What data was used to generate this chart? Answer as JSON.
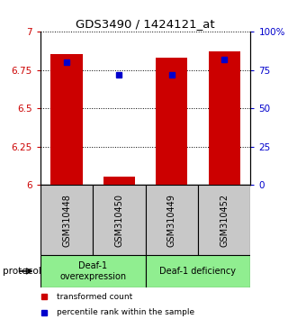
{
  "title": "GDS3490 / 1424121_at",
  "samples": [
    "GSM310448",
    "GSM310450",
    "GSM310449",
    "GSM310452"
  ],
  "bar_values": [
    6.855,
    6.055,
    6.832,
    6.875
  ],
  "percentile_values": [
    80.0,
    72.0,
    72.0,
    82.0
  ],
  "bar_color": "#cc0000",
  "percentile_color": "#0000cc",
  "ylim_left": [
    6.0,
    7.0
  ],
  "ylim_right": [
    0,
    100
  ],
  "yticks_left": [
    6.0,
    6.25,
    6.5,
    6.75,
    7.0
  ],
  "yticks_right": [
    0,
    25,
    50,
    75,
    100
  ],
  "ytick_labels_left": [
    "6",
    "6.25",
    "6.5",
    "6.75",
    "7"
  ],
  "ytick_labels_right": [
    "0",
    "25",
    "50",
    "75",
    "100%"
  ],
  "groups": [
    {
      "label": "Deaf-1\noverexpression",
      "color": "#90ee90"
    },
    {
      "label": "Deaf-1 deficiency",
      "color": "#90ee90"
    }
  ],
  "protocol_label": "protocol",
  "legend_items": [
    {
      "label": "transformed count",
      "color": "#cc0000"
    },
    {
      "label": "percentile rank within the sample",
      "color": "#0000cc"
    }
  ],
  "background_color": "#ffffff",
  "sample_box_color": "#c8c8c8",
  "x_positions": [
    0,
    1,
    2,
    3
  ]
}
